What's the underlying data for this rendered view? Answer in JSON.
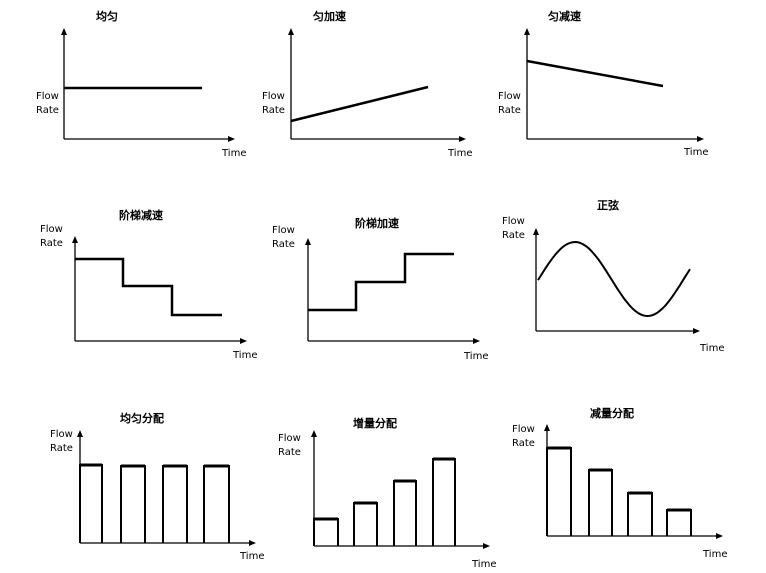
{
  "panels": [
    {
      "title": "均匀",
      "ylabel": [
        "Flow",
        "Rate"
      ],
      "xlabel": "Time"
    },
    {
      "title": "匀加速",
      "ylabel": [
        "Flow",
        "Rate"
      ],
      "xlabel": "Time"
    },
    {
      "title": "匀减速",
      "ylabel": [
        "Flow",
        "Rate"
      ],
      "xlabel": "Time"
    },
    {
      "title": "阶梯减速",
      "ylabel": [
        "Flow",
        "Rate"
      ],
      "xlabel": "Time"
    },
    {
      "title": "阶梯加速",
      "ylabel": [
        "Flow",
        "Rate"
      ],
      "xlabel": "Time"
    },
    {
      "title": "正弦",
      "ylabel": [
        "Flow",
        "Rate"
      ],
      "xlabel": "Time"
    },
    {
      "title": "均匀分配",
      "ylabel": [
        "Flow",
        "Rate"
      ],
      "xlabel": "Time"
    },
    {
      "title": "增量分配",
      "ylabel": [
        "Flow",
        "Rate"
      ],
      "xlabel": "Time"
    },
    {
      "title": "减量分配",
      "ylabel": [
        "Flow",
        "Rate"
      ],
      "xlabel": "Time"
    }
  ]
}
